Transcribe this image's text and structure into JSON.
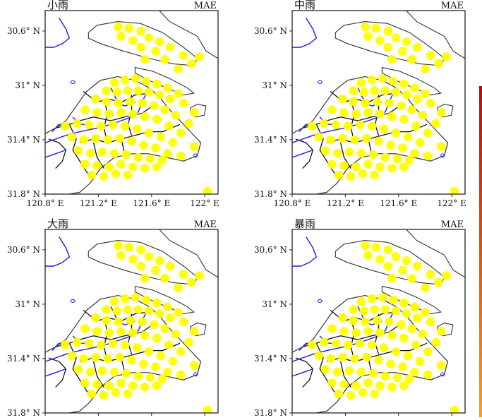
{
  "figure": {
    "panels": [
      {
        "title": "小雨",
        "metric": "MAE",
        "show_x_ticks": true
      },
      {
        "title": "中雨",
        "metric": "MAE",
        "show_x_ticks": true
      },
      {
        "title": "大雨",
        "metric": "MAE",
        "show_x_ticks": false
      },
      {
        "title": "暴雨",
        "metric": "MAE",
        "show_x_ticks": false
      }
    ],
    "y_tick_labels": [
      "31.8° N",
      "31.4° N",
      "31° N",
      "30.6° N"
    ],
    "x_tick_labels": [
      "120.8° E",
      "121.2° E",
      "121.6° E",
      "122° E"
    ],
    "colors": {
      "frame": "#222222",
      "district_boundary": "#111111",
      "coastline": "#333333",
      "river": "#1a1aee",
      "station_fill": "#ffff00",
      "colorbar_top": "#b01010",
      "colorbar_bottom": "#f0a030"
    }
  },
  "chart_data": {
    "type": "scatter",
    "map_region": "Shanghai",
    "xlim": [
      120.8,
      122.1
    ],
    "ylim": [
      30.6,
      31.95
    ],
    "x_ticks": [
      120.8,
      121.2,
      121.6,
      122.0
    ],
    "y_ticks": [
      30.6,
      31.0,
      31.4,
      31.8
    ],
    "panels": [
      "小雨",
      "中雨",
      "大雨",
      "暴雨"
    ],
    "metric": "MAE",
    "stations": [
      {
        "lon": 121.35,
        "lat": 31.83
      },
      {
        "lon": 121.43,
        "lat": 31.82
      },
      {
        "lon": 121.52,
        "lat": 31.8
      },
      {
        "lon": 121.58,
        "lat": 31.75
      },
      {
        "lon": 121.66,
        "lat": 31.72
      },
      {
        "lon": 121.37,
        "lat": 31.76
      },
      {
        "lon": 121.46,
        "lat": 31.73
      },
      {
        "lon": 121.74,
        "lat": 31.68
      },
      {
        "lon": 121.52,
        "lat": 31.68
      },
      {
        "lon": 121.63,
        "lat": 31.65
      },
      {
        "lon": 121.84,
        "lat": 31.62
      },
      {
        "lon": 121.96,
        "lat": 31.61
      },
      {
        "lon": 121.7,
        "lat": 31.59
      },
      {
        "lon": 121.55,
        "lat": 31.59
      },
      {
        "lon": 121.9,
        "lat": 31.56
      },
      {
        "lon": 121.8,
        "lat": 31.52
      },
      {
        "lon": 121.32,
        "lat": 31.42
      },
      {
        "lon": 121.4,
        "lat": 31.44
      },
      {
        "lon": 121.48,
        "lat": 31.45
      },
      {
        "lon": 121.56,
        "lat": 31.43
      },
      {
        "lon": 121.64,
        "lat": 31.41
      },
      {
        "lon": 121.72,
        "lat": 31.38
      },
      {
        "lon": 121.8,
        "lat": 31.34
      },
      {
        "lon": 121.26,
        "lat": 31.36
      },
      {
        "lon": 121.34,
        "lat": 31.35
      },
      {
        "lon": 121.42,
        "lat": 31.36
      },
      {
        "lon": 121.5,
        "lat": 31.36
      },
      {
        "lon": 121.58,
        "lat": 31.35
      },
      {
        "lon": 121.66,
        "lat": 31.33
      },
      {
        "lon": 121.74,
        "lat": 31.3
      },
      {
        "lon": 121.84,
        "lat": 31.27
      },
      {
        "lon": 121.92,
        "lat": 31.2
      },
      {
        "lon": 121.18,
        "lat": 31.3
      },
      {
        "lon": 121.26,
        "lat": 31.28
      },
      {
        "lon": 121.35,
        "lat": 31.27
      },
      {
        "lon": 121.44,
        "lat": 31.28
      },
      {
        "lon": 121.53,
        "lat": 31.27
      },
      {
        "lon": 121.62,
        "lat": 31.25
      },
      {
        "lon": 121.7,
        "lat": 31.22
      },
      {
        "lon": 121.78,
        "lat": 31.18
      },
      {
        "lon": 121.88,
        "lat": 31.12
      },
      {
        "lon": 121.1,
        "lat": 31.22
      },
      {
        "lon": 121.19,
        "lat": 31.2
      },
      {
        "lon": 121.28,
        "lat": 31.19
      },
      {
        "lon": 121.37,
        "lat": 31.2
      },
      {
        "lon": 121.46,
        "lat": 31.19
      },
      {
        "lon": 121.55,
        "lat": 31.17
      },
      {
        "lon": 121.64,
        "lat": 31.15
      },
      {
        "lon": 121.73,
        "lat": 31.1
      },
      {
        "lon": 121.82,
        "lat": 31.05
      },
      {
        "lon": 120.95,
        "lat": 31.1
      },
      {
        "lon": 121.04,
        "lat": 31.12
      },
      {
        "lon": 121.13,
        "lat": 31.11
      },
      {
        "lon": 121.22,
        "lat": 31.1
      },
      {
        "lon": 121.31,
        "lat": 31.11
      },
      {
        "lon": 121.4,
        "lat": 31.1
      },
      {
        "lon": 121.49,
        "lat": 31.08
      },
      {
        "lon": 121.58,
        "lat": 31.05
      },
      {
        "lon": 121.67,
        "lat": 31.02
      },
      {
        "lon": 121.76,
        "lat": 30.98
      },
      {
        "lon": 121.92,
        "lat": 30.95
      },
      {
        "lon": 121.0,
        "lat": 31.02
      },
      {
        "lon": 121.09,
        "lat": 31.0
      },
      {
        "lon": 121.18,
        "lat": 31.01
      },
      {
        "lon": 121.27,
        "lat": 31.0
      },
      {
        "lon": 121.36,
        "lat": 31.01
      },
      {
        "lon": 121.45,
        "lat": 30.99
      },
      {
        "lon": 121.54,
        "lat": 30.96
      },
      {
        "lon": 121.63,
        "lat": 30.94
      },
      {
        "lon": 121.72,
        "lat": 30.9
      },
      {
        "lon": 121.82,
        "lat": 30.88
      },
      {
        "lon": 121.05,
        "lat": 30.92
      },
      {
        "lon": 121.14,
        "lat": 30.9
      },
      {
        "lon": 121.23,
        "lat": 30.91
      },
      {
        "lon": 121.32,
        "lat": 30.9
      },
      {
        "lon": 121.41,
        "lat": 30.89
      },
      {
        "lon": 121.5,
        "lat": 30.87
      },
      {
        "lon": 121.59,
        "lat": 30.86
      },
      {
        "lon": 121.68,
        "lat": 30.85
      },
      {
        "lon": 121.1,
        "lat": 30.82
      },
      {
        "lon": 121.19,
        "lat": 30.81
      },
      {
        "lon": 121.28,
        "lat": 30.8
      },
      {
        "lon": 121.37,
        "lat": 30.82
      },
      {
        "lon": 121.46,
        "lat": 30.8
      },
      {
        "lon": 121.55,
        "lat": 30.79
      },
      {
        "lon": 121.64,
        "lat": 30.8
      },
      {
        "lon": 121.15,
        "lat": 30.74
      },
      {
        "lon": 121.24,
        "lat": 30.73
      },
      {
        "lon": 121.33,
        "lat": 30.75
      },
      {
        "lon": 121.42,
        "lat": 30.74
      },
      {
        "lon": 122.02,
        "lat": 30.62
      }
    ]
  }
}
